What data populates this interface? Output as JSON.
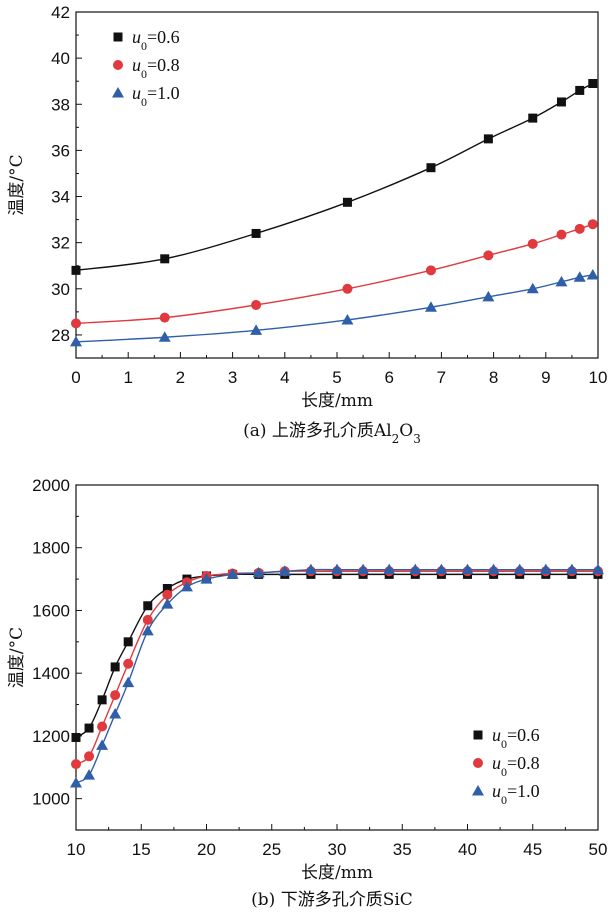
{
  "chart_data": [
    {
      "type": "line",
      "caption_prefix": "(a) 上游多孔介质Al",
      "caption_sub1": "2",
      "caption_mid": "O",
      "caption_sub2": "3",
      "xlabel": "长度/mm",
      "ylabel": "温度/°C",
      "xlim": [
        0,
        10
      ],
      "ylim": [
        27,
        42
      ],
      "xticks": [
        "0",
        "1",
        "2",
        "3",
        "4",
        "5",
        "6",
        "7",
        "8",
        "9",
        "10"
      ],
      "yticks": [
        "28",
        "30",
        "32",
        "34",
        "36",
        "38",
        "40",
        "42"
      ],
      "legend_position": "top-left",
      "series": [
        {
          "name": "u0=0.6",
          "legend_var": "u",
          "legend_sub": "0",
          "legend_val": "=0.6",
          "color": "#111111",
          "marker": "square",
          "x": [
            0,
            1.7,
            3.45,
            5.2,
            6.8,
            7.9,
            8.75,
            9.3,
            9.65,
            9.9
          ],
          "y": [
            30.8,
            31.3,
            32.4,
            33.75,
            35.25,
            36.5,
            37.4,
            38.1,
            38.6,
            38.9
          ]
        },
        {
          "name": "u0=0.8",
          "legend_var": "u",
          "legend_sub": "0",
          "legend_val": "=0.8",
          "color": "#e0393e",
          "marker": "circle",
          "x": [
            0,
            1.7,
            3.45,
            5.2,
            6.8,
            7.9,
            8.75,
            9.3,
            9.65,
            9.9
          ],
          "y": [
            28.5,
            28.75,
            29.3,
            30.0,
            30.8,
            31.45,
            31.95,
            32.35,
            32.6,
            32.8
          ]
        },
        {
          "name": "u0=1.0",
          "legend_var": "u",
          "legend_sub": "0",
          "legend_val": "=1.0",
          "color": "#2f5fa8",
          "marker": "triangle",
          "x": [
            0,
            1.7,
            3.45,
            5.2,
            6.8,
            7.9,
            8.75,
            9.3,
            9.65,
            9.9
          ],
          "y": [
            27.7,
            27.9,
            28.2,
            28.65,
            29.2,
            29.65,
            30.0,
            30.3,
            30.5,
            30.6
          ]
        }
      ]
    },
    {
      "type": "line",
      "caption": "(b) 下游多孔介质SiC",
      "xlabel": "长度/mm",
      "ylabel": "温度/°C",
      "xlim": [
        10,
        50
      ],
      "ylim": [
        900,
        2000
      ],
      "xticks": [
        "10",
        "15",
        "20",
        "25",
        "30",
        "35",
        "40",
        "45",
        "50"
      ],
      "yticks": [
        "1000",
        "1200",
        "1400",
        "1600",
        "1800",
        "2000"
      ],
      "legend_position": "bottom-right",
      "series": [
        {
          "name": "u0=0.6",
          "legend_var": "u",
          "legend_sub": "0",
          "legend_val": "=0.6",
          "color": "#111111",
          "marker": "square",
          "x": [
            10,
            11,
            12,
            13,
            14,
            15.5,
            17,
            18.5,
            20,
            22,
            24,
            26,
            28,
            30,
            32,
            34,
            36,
            38,
            40,
            42,
            44,
            46,
            48,
            50
          ],
          "y": [
            1195,
            1225,
            1315,
            1420,
            1500,
            1615,
            1670,
            1700,
            1710,
            1715,
            1715,
            1715,
            1715,
            1715,
            1715,
            1715,
            1715,
            1715,
            1715,
            1715,
            1715,
            1715,
            1715,
            1715
          ]
        },
        {
          "name": "u0=0.8",
          "legend_var": "u",
          "legend_sub": "0",
          "legend_val": "=0.8",
          "color": "#e0393e",
          "marker": "circle",
          "x": [
            10,
            11,
            12,
            13,
            14,
            15.5,
            17,
            18.5,
            20,
            22,
            24,
            26,
            28,
            30,
            32,
            34,
            36,
            38,
            40,
            42,
            44,
            46,
            48,
            50
          ],
          "y": [
            1110,
            1135,
            1230,
            1330,
            1430,
            1570,
            1650,
            1690,
            1710,
            1718,
            1720,
            1725,
            1725,
            1725,
            1725,
            1725,
            1725,
            1725,
            1725,
            1725,
            1725,
            1725,
            1725,
            1725
          ]
        },
        {
          "name": "u0=1.0",
          "legend_var": "u",
          "legend_sub": "0",
          "legend_val": "=1.0",
          "color": "#2f5fa8",
          "marker": "triangle",
          "x": [
            10,
            11,
            12,
            13,
            14,
            15.5,
            17,
            18.5,
            20,
            22,
            24,
            26,
            28,
            30,
            32,
            34,
            36,
            38,
            40,
            42,
            44,
            46,
            48,
            50
          ],
          "y": [
            1050,
            1075,
            1170,
            1270,
            1370,
            1535,
            1620,
            1675,
            1700,
            1715,
            1720,
            1725,
            1730,
            1730,
            1730,
            1730,
            1730,
            1730,
            1730,
            1730,
            1730,
            1730,
            1730,
            1730
          ]
        }
      ]
    }
  ]
}
